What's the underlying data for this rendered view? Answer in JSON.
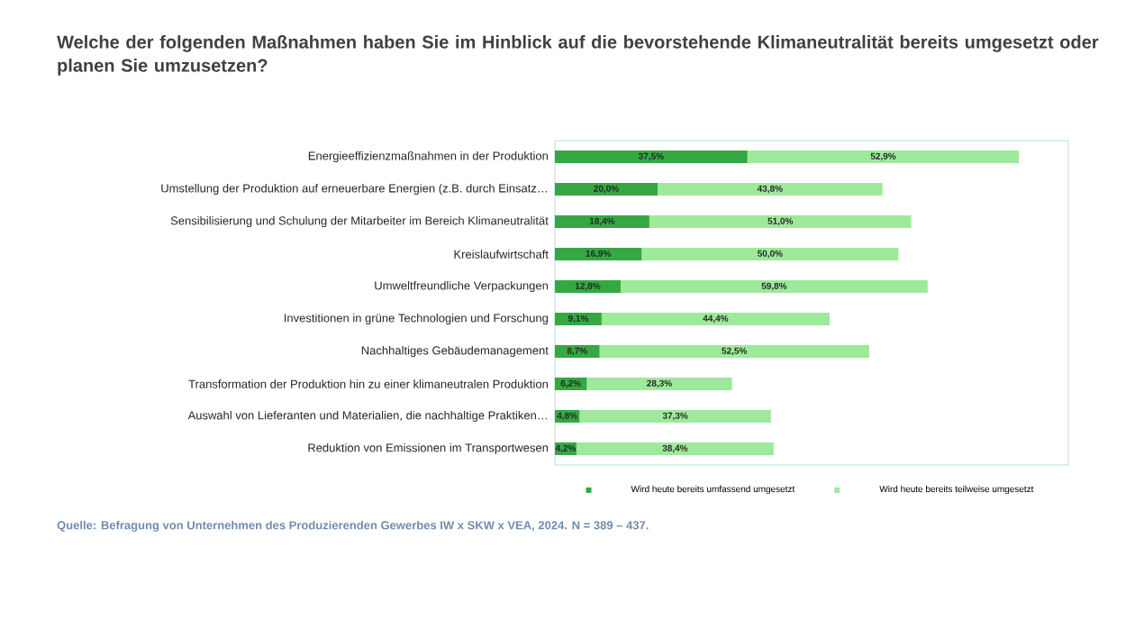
{
  "chart_data": {
    "type": "bar",
    "orientation": "horizontal",
    "stacked": true,
    "title": "Welche der folgenden Maßnahmen haben Sie im Hinblick auf die bevorstehende Klimaneutralität bereits umgesetzt oder planen Sie umzusetzen?",
    "categories": [
      "Energieeffizienzmaßnahmen in der Produktion",
      "Umstellung der Produktion auf erneuerbare Energien (z.B. durch Einsatz…",
      "Sensibilisierung und Schulung der Mitarbeiter im Bereich Klimaneutralität",
      "Kreislaufwirtschaft",
      "Umweltfreundliche Verpackungen",
      "Investitionen in grüne Technologien und Forschung",
      "Nachhaltiges Gebäudemanagement",
      "Transformation der Produktion hin zu einer klimaneutralen Produktion",
      "Auswahl von Lieferanten und Materialien, die nachhaltige Praktiken…",
      "Reduktion von Emissionen im Transportwesen"
    ],
    "series": [
      {
        "name": "Wird heute bereits umfassend umgesetzt",
        "color": "#35a843",
        "values": [
          37.5,
          20.0,
          18.4,
          16.9,
          12.8,
          9.1,
          8.7,
          6.2,
          4.8,
          4.2
        ],
        "value_labels": [
          "37,5%",
          "20,0%",
          "18,4%",
          "16,9%",
          "12,8%",
          "9,1%",
          "8,7%",
          "6,2%",
          "4,8%",
          "4,2%"
        ]
      },
      {
        "name": "Wird heute bereits teilweise umgesetzt",
        "color": "#9ee99b",
        "values": [
          52.9,
          43.8,
          51.0,
          50.0,
          59.8,
          44.4,
          52.5,
          28.3,
          37.3,
          38.4
        ],
        "value_labels": [
          "52,9%",
          "43,8%",
          "51,0%",
          "50,0%",
          "59,8%",
          "44,4%",
          "52,5%",
          "28,3%",
          "37,3%",
          "38,4%"
        ]
      }
    ],
    "xlim": [
      0,
      100
    ],
    "tick_labels": "y",
    "legend": "bottom",
    "annotations": [
      "Quelle: Befragung von Unternehmen des Produzierenden Gewerbes IW x SKW x VEA, 2024. N = 389 – 437."
    ]
  }
}
